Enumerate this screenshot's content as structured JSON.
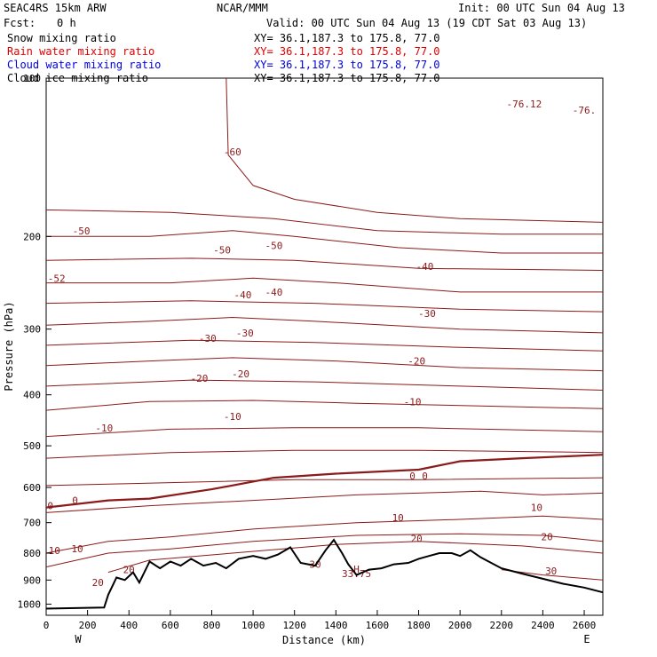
{
  "header": {
    "model": "SEAC4RS 15km ARW",
    "org": "NCAR/MMM",
    "init": "Init: 00 UTC Sun 04 Aug 13",
    "fcst_label": "Fcst:",
    "fcst_value": "0 h",
    "valid": "Valid: 00 UTC Sun 04 Aug 13 (19 CDT Sat 03 Aug 13)"
  },
  "legend": [
    {
      "name": "Snow mixing ratio",
      "xy": "XY=  36.1,187.3 to 175.8, 77.0",
      "color": "#000000"
    },
    {
      "name": "Rain water mixing ratio",
      "xy": "XY=  36.1,187.3 to 175.8, 77.0",
      "color": "#e00000"
    },
    {
      "name": "Cloud water mixing ratio",
      "xy": "XY=  36.1,187.3 to 175.8, 77.0",
      "color": "#0000e0"
    },
    {
      "name": "Cloud ice mixing ratio",
      "xy": "XY=  36.1,187.3 to 175.8, 77.0",
      "color": "#000000"
    }
  ],
  "colors": {
    "contour": "#8b1a1a",
    "terrain": "#000000",
    "axis": "#000000"
  },
  "chart_data": {
    "type": "line",
    "xlabel": "Distance (km)",
    "ylabel": "Pressure (hPa)",
    "xlim": [
      0,
      2690
    ],
    "ylim": [
      1050,
      100
    ],
    "y_scale": "log",
    "x_ticks": [
      "0",
      "200",
      "400",
      "600",
      "800",
      "1000",
      "1200",
      "1400",
      "1600",
      "1800",
      "2000",
      "2200",
      "2400",
      "2600"
    ],
    "y_ticks": [
      "200",
      "300",
      "400",
      "500",
      "600",
      "700",
      "800",
      "900",
      "1000"
    ],
    "y_top_tick": "100",
    "end_labels": {
      "left": "W",
      "right": "E"
    },
    "contour_interval_c": 5,
    "temperature_contours": [
      {
        "level": -60,
        "points": [
          [
            870,
            100
          ],
          [
            880,
            140
          ],
          [
            1000,
            160
          ],
          [
            1200,
            170
          ],
          [
            1600,
            180
          ],
          [
            2000,
            185
          ],
          [
            2690,
            188
          ]
        ]
      },
      {
        "level": -55,
        "points": [
          [
            0,
            178
          ],
          [
            600,
            180
          ],
          [
            1100,
            185
          ],
          [
            1600,
            195
          ],
          [
            2200,
            198
          ],
          [
            2690,
            198
          ]
        ]
      },
      {
        "level": -50,
        "points": [
          [
            0,
            200
          ],
          [
            500,
            200
          ],
          [
            900,
            195
          ],
          [
            1200,
            200
          ],
          [
            1700,
            210
          ],
          [
            2200,
            215
          ],
          [
            2690,
            215
          ]
        ]
      },
      {
        "level": -45,
        "points": [
          [
            0,
            222
          ],
          [
            700,
            220
          ],
          [
            1200,
            222
          ],
          [
            1800,
            230
          ],
          [
            2690,
            232
          ]
        ]
      },
      {
        "level": -40,
        "points": [
          [
            0,
            245
          ],
          [
            600,
            245
          ],
          [
            1000,
            240
          ],
          [
            1400,
            245
          ],
          [
            2000,
            255
          ],
          [
            2690,
            255
          ]
        ]
      },
      {
        "level": -35,
        "points": [
          [
            0,
            268
          ],
          [
            700,
            265
          ],
          [
            1300,
            268
          ],
          [
            2000,
            275
          ],
          [
            2690,
            278
          ]
        ]
      },
      {
        "level": -30,
        "points": [
          [
            0,
            295
          ],
          [
            500,
            290
          ],
          [
            900,
            285
          ],
          [
            1300,
            290
          ],
          [
            2000,
            300
          ],
          [
            2690,
            305
          ]
        ]
      },
      {
        "level": -25,
        "points": [
          [
            0,
            322
          ],
          [
            700,
            315
          ],
          [
            1300,
            318
          ],
          [
            2000,
            325
          ],
          [
            2690,
            330
          ]
        ]
      },
      {
        "level": -20,
        "points": [
          [
            0,
            352
          ],
          [
            500,
            345
          ],
          [
            900,
            340
          ],
          [
            1400,
            345
          ],
          [
            2000,
            355
          ],
          [
            2690,
            360
          ]
        ]
      },
      {
        "level": -15,
        "points": [
          [
            0,
            385
          ],
          [
            700,
            375
          ],
          [
            1300,
            378
          ],
          [
            2000,
            385
          ],
          [
            2690,
            392
          ]
        ]
      },
      {
        "level": -10,
        "points": [
          [
            0,
            428
          ],
          [
            500,
            412
          ],
          [
            1000,
            410
          ],
          [
            1500,
            415
          ],
          [
            2100,
            420
          ],
          [
            2690,
            425
          ]
        ]
      },
      {
        "level": -5,
        "points": [
          [
            0,
            480
          ],
          [
            600,
            465
          ],
          [
            1200,
            462
          ],
          [
            1800,
            462
          ],
          [
            2690,
            470
          ]
        ]
      },
      {
        "level": -3,
        "points": [
          [
            0,
            528
          ],
          [
            600,
            515
          ],
          [
            1200,
            510
          ],
          [
            1800,
            510
          ],
          [
            2690,
            515
          ]
        ]
      },
      {
        "level": 0,
        "points": [
          [
            0,
            655
          ],
          [
            300,
            635
          ],
          [
            500,
            630
          ],
          [
            800,
            605
          ],
          [
            1100,
            575
          ],
          [
            1400,
            565
          ],
          [
            1800,
            555
          ],
          [
            2000,
            535
          ],
          [
            2300,
            528
          ],
          [
            2690,
            520
          ]
        ]
      },
      {
        "level": 3,
        "points": [
          [
            0,
            595
          ],
          [
            400,
            590
          ],
          [
            800,
            585
          ],
          [
            1200,
            580
          ],
          [
            1800,
            580
          ],
          [
            2690,
            575
          ]
        ]
      },
      {
        "level": 5,
        "points": [
          [
            0,
            670
          ],
          [
            500,
            650
          ],
          [
            1000,
            635
          ],
          [
            1500,
            620
          ],
          [
            2100,
            610
          ],
          [
            2400,
            620
          ],
          [
            2690,
            615
          ]
        ]
      },
      {
        "level": 10,
        "points": [
          [
            0,
            800
          ],
          [
            300,
            760
          ],
          [
            600,
            745
          ],
          [
            1000,
            720
          ],
          [
            1500,
            700
          ],
          [
            2000,
            690
          ],
          [
            2400,
            680
          ],
          [
            2690,
            690
          ]
        ]
      },
      {
        "level": 15,
        "points": [
          [
            0,
            850
          ],
          [
            300,
            800
          ],
          [
            600,
            785
          ],
          [
            1000,
            760
          ],
          [
            1500,
            740
          ],
          [
            2000,
            735
          ],
          [
            2400,
            740
          ],
          [
            2690,
            760
          ]
        ]
      },
      {
        "level": 20,
        "points": [
          [
            300,
            870
          ],
          [
            500,
            825
          ],
          [
            900,
            800
          ],
          [
            1400,
            770
          ],
          [
            1800,
            760
          ],
          [
            2300,
            775
          ],
          [
            2690,
            800
          ]
        ]
      },
      {
        "level": 30,
        "points": [
          [
            2200,
            860
          ],
          [
            2400,
            880
          ],
          [
            2690,
            900
          ]
        ]
      }
    ],
    "terrain": [
      [
        0,
        1020
      ],
      [
        280,
        1015
      ],
      [
        300,
        960
      ],
      [
        340,
        890
      ],
      [
        380,
        900
      ],
      [
        420,
        870
      ],
      [
        450,
        910
      ],
      [
        500,
        830
      ],
      [
        550,
        855
      ],
      [
        600,
        830
      ],
      [
        650,
        845
      ],
      [
        700,
        820
      ],
      [
        760,
        845
      ],
      [
        820,
        835
      ],
      [
        870,
        855
      ],
      [
        930,
        820
      ],
      [
        1000,
        810
      ],
      [
        1060,
        820
      ],
      [
        1120,
        805
      ],
      [
        1180,
        780
      ],
      [
        1230,
        835
      ],
      [
        1300,
        845
      ],
      [
        1350,
        790
      ],
      [
        1390,
        755
      ],
      [
        1430,
        800
      ],
      [
        1460,
        840
      ],
      [
        1500,
        880
      ],
      [
        1560,
        860
      ],
      [
        1620,
        855
      ],
      [
        1680,
        840
      ],
      [
        1750,
        835
      ],
      [
        1800,
        820
      ],
      [
        1850,
        810
      ],
      [
        1900,
        800
      ],
      [
        1960,
        800
      ],
      [
        2000,
        810
      ],
      [
        2050,
        790
      ],
      [
        2100,
        815
      ],
      [
        2200,
        855
      ],
      [
        2300,
        875
      ],
      [
        2400,
        895
      ],
      [
        2500,
        915
      ],
      [
        2600,
        930
      ],
      [
        2690,
        950
      ]
    ],
    "annotations": [
      {
        "text": "-60",
        "x": 900,
        "y": 138
      },
      {
        "text": "-50",
        "x": 170,
        "y": 195
      },
      {
        "text": "-52",
        "x": 50,
        "y": 240
      },
      {
        "text": "-50",
        "x": 850,
        "y": 212
      },
      {
        "text": "-50",
        "x": 1100,
        "y": 208
      },
      {
        "text": "-40",
        "x": 950,
        "y": 258
      },
      {
        "text": "-40",
        "x": 1100,
        "y": 255
      },
      {
        "text": "-40",
        "x": 1830,
        "y": 228
      },
      {
        "text": "-30",
        "x": 780,
        "y": 312
      },
      {
        "text": "-30",
        "x": 960,
        "y": 305
      },
      {
        "text": "-30",
        "x": 1840,
        "y": 280
      },
      {
        "text": "-20",
        "x": 740,
        "y": 372
      },
      {
        "text": "-20",
        "x": 940,
        "y": 365
      },
      {
        "text": "-20",
        "x": 1790,
        "y": 345
      },
      {
        "text": "-10",
        "x": 280,
        "y": 462
      },
      {
        "text": "-10",
        "x": 900,
        "y": 440
      },
      {
        "text": "-10",
        "x": 1770,
        "y": 412
      },
      {
        "text": "0",
        "x": 1770,
        "y": 570
      },
      {
        "text": "0",
        "x": 1830,
        "y": 570
      },
      {
        "text": "0",
        "x": 20,
        "y": 650
      },
      {
        "text": "0",
        "x": 140,
        "y": 635
      },
      {
        "text": "10",
        "x": 40,
        "y": 790
      },
      {
        "text": "10",
        "x": 150,
        "y": 785
      },
      {
        "text": "10",
        "x": 1700,
        "y": 685
      },
      {
        "text": "10",
        "x": 2370,
        "y": 655
      },
      {
        "text": "20",
        "x": 400,
        "y": 860
      },
      {
        "text": "20",
        "x": 250,
        "y": 910
      },
      {
        "text": "20",
        "x": 1790,
        "y": 750
      },
      {
        "text": "20",
        "x": 2420,
        "y": 745
      },
      {
        "text": "30",
        "x": 1300,
        "y": 840
      },
      {
        "text": "30",
        "x": 2440,
        "y": 865
      },
      {
        "text": "-76.12",
        "x": 2310,
        "y": 112
      },
      {
        "text": "-76.",
        "x": 2600,
        "y": 115
      },
      {
        "text": "H",
        "x": 1500,
        "y": 858
      },
      {
        "text": "33.75",
        "x": 1500,
        "y": 875
      }
    ]
  }
}
